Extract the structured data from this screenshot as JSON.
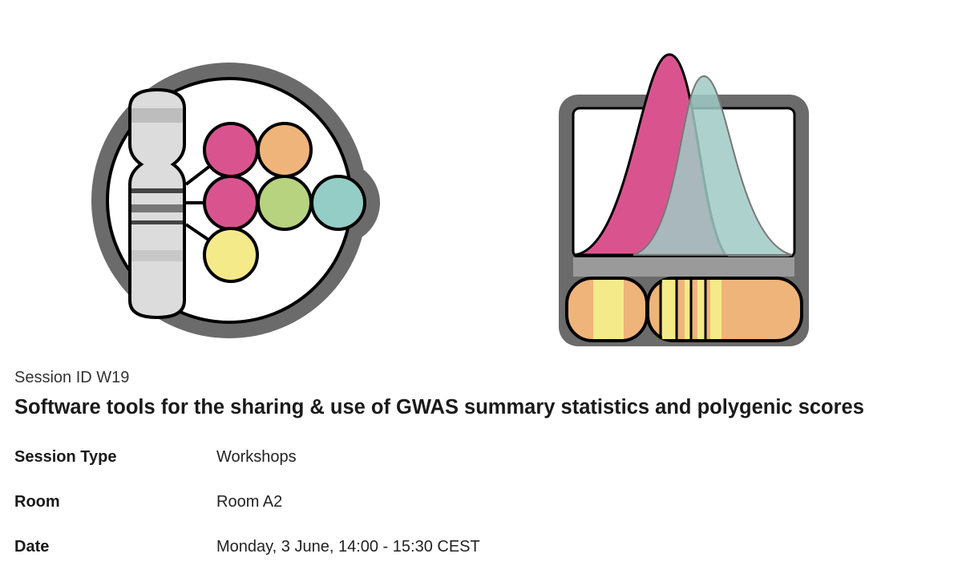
{
  "session": {
    "id_line": "Session ID W19",
    "title": "Software tools for the sharing & use of GWAS summary statistics and polygenic scores",
    "details": [
      {
        "label": "Session Type",
        "value": "Workshops"
      },
      {
        "label": "Room",
        "value": "Room A2"
      },
      {
        "label": "Date",
        "value": "Monday, 3 June, 14:00 - 15:30 CEST"
      }
    ]
  }
}
